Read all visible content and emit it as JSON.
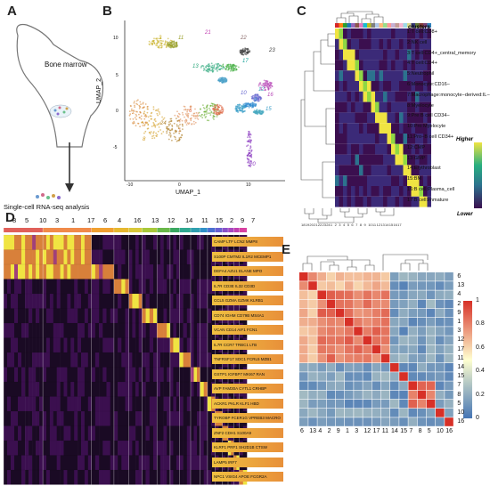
{
  "panels": {
    "a": {
      "letter": "A",
      "organ_label": "Bone marrow",
      "caption": "Single-cell RNA-seq analysis"
    },
    "b": {
      "letter": "B",
      "xlabel": "UMAP_1",
      "ylabel": "UMAP_2",
      "xticks": [
        "-10",
        "0",
        "10"
      ],
      "yticks": [
        "10",
        "5",
        "0",
        "-5"
      ],
      "cluster_labels": [
        {
          "id": "3",
          "color": "#c9b22a"
        },
        {
          "id": "11",
          "color": "#9aa02c"
        },
        {
          "id": "21",
          "color": "#c03fb0"
        },
        {
          "id": "22",
          "color": "#8a6a6a"
        },
        {
          "id": "23",
          "color": "#444444"
        },
        {
          "id": "13",
          "color": "#2aa67a"
        },
        {
          "id": "4",
          "color": "#4cb24b"
        },
        {
          "id": "17",
          "color": "#1aa39a"
        },
        {
          "id": "18",
          "color": "#4aa0c8"
        },
        {
          "id": "16",
          "color": "#b84ab8"
        },
        {
          "id": "10",
          "color": "#6a6ad0"
        },
        {
          "id": "9",
          "color": "#2e8bd0"
        },
        {
          "id": "12",
          "color": "#46a8c0"
        },
        {
          "id": "15",
          "color": "#3a9ec8"
        },
        {
          "id": "2",
          "color": "#d88a3a"
        },
        {
          "id": "6",
          "color": "#e06a4a"
        },
        {
          "id": "7",
          "color": "#6fb03a"
        },
        {
          "id": "24",
          "color": "#b0802a"
        },
        {
          "id": "8",
          "color": "#d4a02a"
        },
        {
          "id": "1",
          "color": "#e0905a"
        },
        {
          "id": "20",
          "color": "#8a3ac0"
        }
      ]
    },
    "c": {
      "letter": "C",
      "legend_title": "clusters",
      "scale_high": "Higher",
      "scale_low": "Lower",
      "clusters": [
        "1:T cell:CD8+",
        "2:NK cell",
        "3:T cell:CD4+_central_memory",
        "4:T cell:CD4+",
        "5:Neutrophil",
        "6:Monocyte:CD16−",
        "7:Macrophage:monocyte−derived:IL−4/Dex/cntrl",
        "8:Myelocyte",
        "9:Pre B cell CD34−",
        "10:Pro Myelocyte",
        "11:Pro−B cell CD34+",
        "12:CMP",
        "13:GMP",
        "14:Erythroblast",
        "15:BM",
        "16:B cell:Plasma_cell",
        "17:B cell:immature"
      ],
      "bottom_ticks": [
        "18",
        "19",
        "20",
        "21",
        "22",
        "23",
        "24",
        "1",
        "2",
        "3",
        "4",
        "5",
        "6",
        "7",
        "8",
        "9",
        "10",
        "11",
        "12",
        "13",
        "14",
        "15",
        "16",
        "17"
      ]
    },
    "d": {
      "letter": "D",
      "cluster_order": [
        "8",
        "5",
        "10",
        "3",
        "1",
        "17",
        "6",
        "4",
        "16",
        "13",
        "12",
        "14",
        "11",
        "15",
        "2",
        "9",
        "7"
      ],
      "gene_rows": [
        "CAMP  LTF  LCN2  MMP8",
        "S100P  CMTM2  IL1R2  MCEMP1",
        "DEFA4  AZU1  ELANE  MPO",
        "IL7R  CD3E  IL32  CD3D",
        "CCL5  GZMA  GZMK  KLRB1",
        "CD74  IGHM  CD79B  MS4A1",
        "VCAN  CD14  AIF1  FCN1",
        "IL7R  CCR7  TRBC1  LTB",
        "TNFRSF17  SDC1  FCRL5  MZB1",
        "GSTP1  IGFBP7  MKI67  RAN",
        "AVP  FAM30A  CYTL1  CRHBP",
        "ACKR1  PKLR  KLF1  HBD",
        "TYROBP  FCER1G  VPREB3  MACRO",
        "ZNF2  CDH1  S100A9",
        "KLRF1  PRF1  SH2D1B  CTSW",
        "LAMP5  IRF7",
        "NPC1  VSIG4  APOE  FCGR2A"
      ]
    },
    "e": {
      "letter": "E",
      "order": [
        "6",
        "13",
        "4",
        "2",
        "9",
        "1",
        "3",
        "12",
        "17",
        "11",
        "14",
        "15",
        "7",
        "8",
        "5",
        "10",
        "16"
      ],
      "scale_ticks": [
        "1",
        "0.8",
        "0.6",
        "0.4",
        "0.2",
        "0"
      ]
    }
  },
  "colors": {
    "heat_high": "#f0e442",
    "heat_low": "#3b0f4f",
    "corr_high": "#d73027",
    "corr_low": "#4575b4"
  }
}
